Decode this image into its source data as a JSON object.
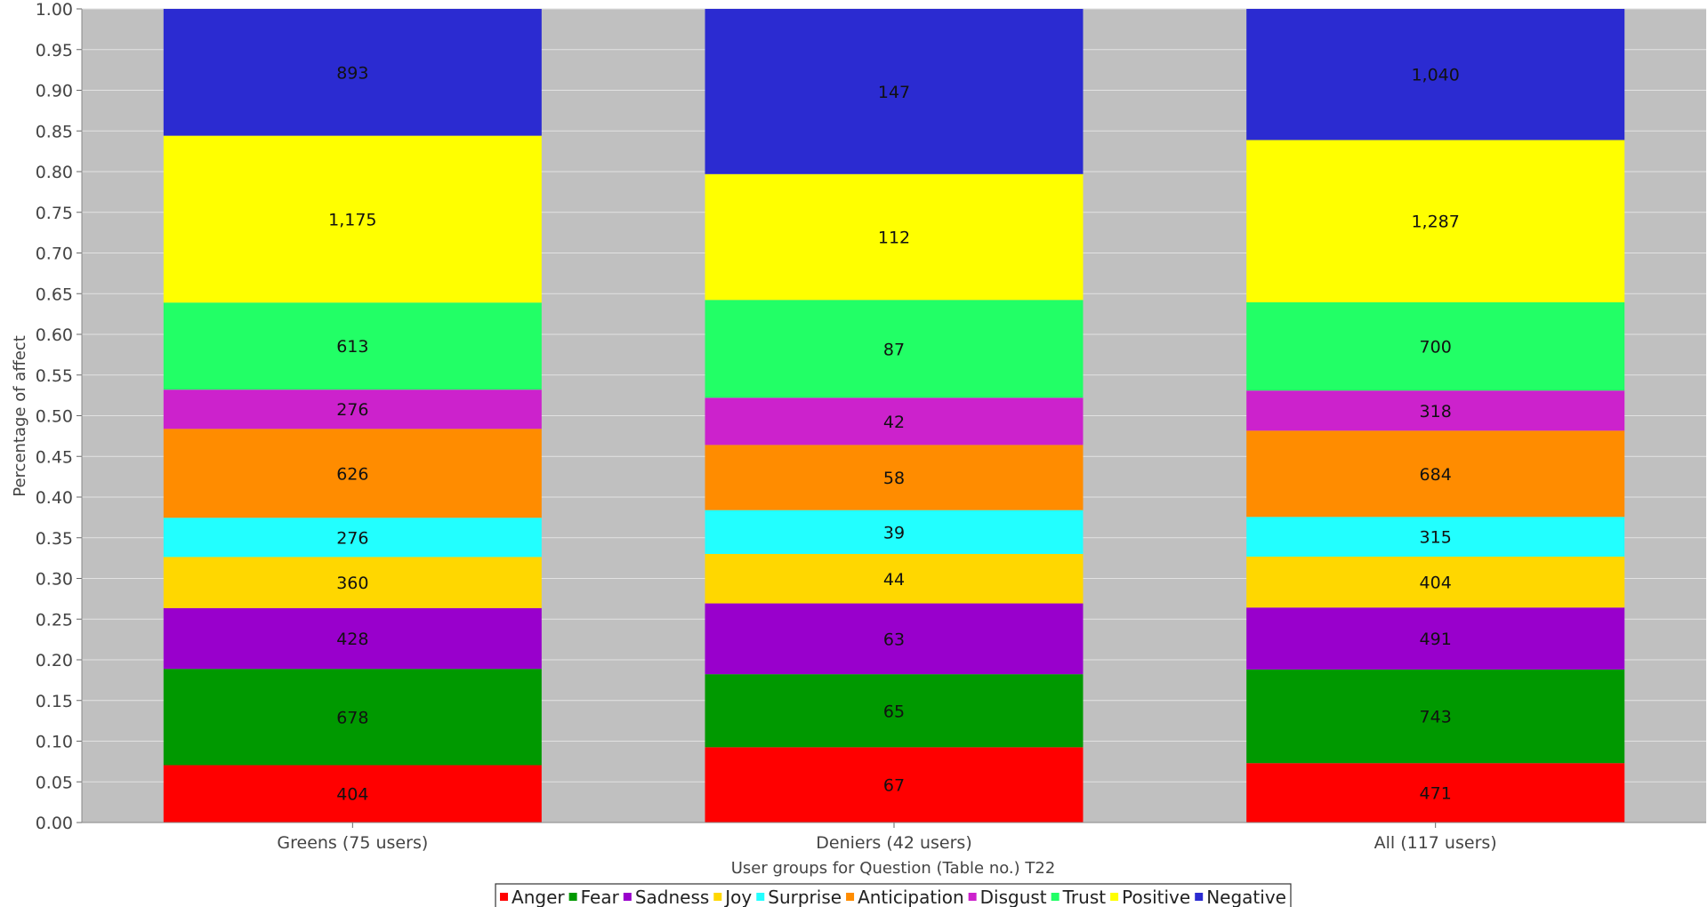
{
  "chart_data": {
    "type": "bar",
    "stacked": true,
    "normalized": true,
    "xlabel": "User groups for Question (Table no.) T22",
    "ylabel": "Percentage of affect",
    "ylim": [
      0,
      1
    ],
    "yticks": [
      "0.00",
      "0.05",
      "0.10",
      "0.15",
      "0.20",
      "0.25",
      "0.30",
      "0.35",
      "0.40",
      "0.45",
      "0.50",
      "0.55",
      "0.60",
      "0.65",
      "0.70",
      "0.75",
      "0.80",
      "0.85",
      "0.90",
      "0.95",
      "1.00"
    ],
    "grid": true,
    "legend_position": "bottom-center",
    "categories": [
      "Greens (75 users)",
      "Deniers (42 users)",
      "All (117 users)"
    ],
    "series": [
      {
        "name": "Anger",
        "color": "#ff0000",
        "values": [
          404,
          67,
          471
        ],
        "labels": [
          "404",
          "67",
          "471"
        ]
      },
      {
        "name": "Fear",
        "color": "#009900",
        "values": [
          678,
          65,
          743
        ],
        "labels": [
          "678",
          "65",
          "743"
        ]
      },
      {
        "name": "Sadness",
        "color": "#9900cc",
        "values": [
          428,
          63,
          491
        ],
        "labels": [
          "428",
          "63",
          "491"
        ]
      },
      {
        "name": "Joy",
        "color": "#ffd700",
        "values": [
          360,
          44,
          404
        ],
        "labels": [
          "360",
          "44",
          "404"
        ]
      },
      {
        "name": "Surprise",
        "color": "#22ffff",
        "values": [
          276,
          39,
          315
        ],
        "labels": [
          "276",
          "39",
          "315"
        ]
      },
      {
        "name": "Anticipation",
        "color": "#ff8c00",
        "values": [
          626,
          58,
          684
        ],
        "labels": [
          "626",
          "58",
          "684"
        ]
      },
      {
        "name": "Disgust",
        "color": "#cc22cc",
        "values": [
          276,
          42,
          318
        ],
        "labels": [
          "276",
          "42",
          "318"
        ]
      },
      {
        "name": "Trust",
        "color": "#22ff66",
        "values": [
          613,
          87,
          700
        ],
        "labels": [
          "613",
          "87",
          "700"
        ]
      },
      {
        "name": "Positive",
        "color": "#ffff00",
        "values": [
          1175,
          112,
          1287
        ],
        "labels": [
          "1,175",
          "112",
          "1,287"
        ]
      },
      {
        "name": "Negative",
        "color": "#2b2bd1",
        "values": [
          893,
          147,
          1040
        ],
        "labels": [
          "893",
          "147",
          "1,040"
        ]
      }
    ],
    "colors": {
      "plot_background": "#c0c0c0",
      "gridline": "#e2e2e2"
    }
  }
}
